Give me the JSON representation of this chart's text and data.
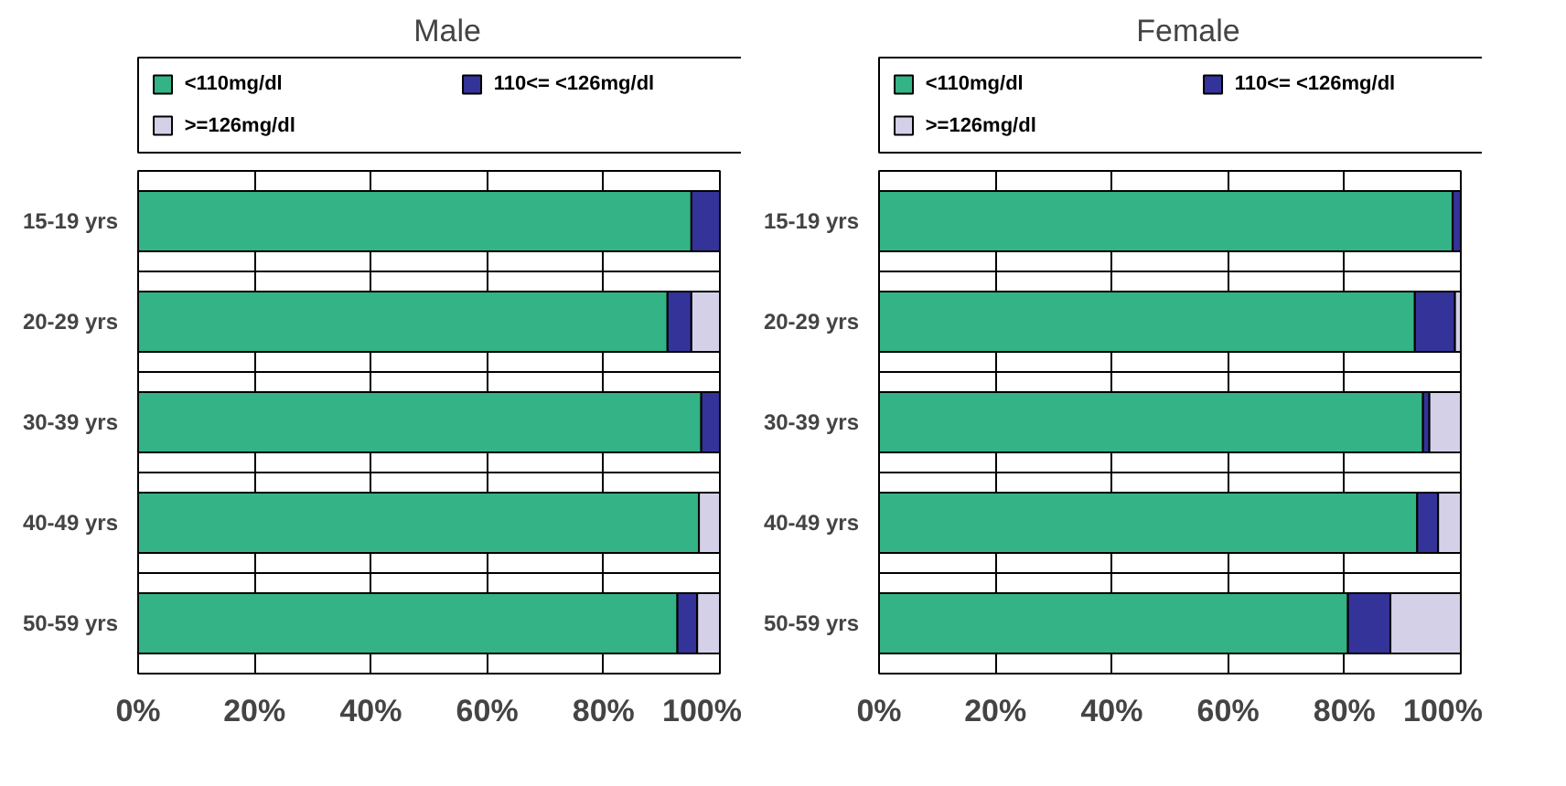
{
  "chart_data": [
    {
      "type": "bar",
      "title": "Male",
      "orientation": "horizontal",
      "stacked": true,
      "categories": [
        "15-19 yrs",
        "20-29 yrs",
        "30-39 yrs",
        "40-49 yrs",
        "50-59 yrs"
      ],
      "series": [
        {
          "name": "<110mg/dl",
          "color": "#33b386",
          "values": [
            95.1,
            91.0,
            96.8,
            96.4,
            92.7
          ]
        },
        {
          "name": "110<= <126mg/dl",
          "color": "#333399",
          "values": [
            4.9,
            4.1,
            3.2,
            0,
            3.4
          ]
        },
        {
          "name": ">=126mg/dl",
          "color": "#d4d0e8",
          "values": [
            0,
            4.9,
            0,
            3.6,
            3.9
          ]
        }
      ],
      "xlim": [
        0,
        100
      ],
      "xticks": [
        {
          "value": 0,
          "label": "0%"
        },
        {
          "value": 20,
          "label": "20%"
        },
        {
          "value": 40,
          "label": "40%"
        },
        {
          "value": 60,
          "label": "60%"
        },
        {
          "value": 80,
          "label": "80%"
        },
        {
          "value": 100,
          "label": "100%"
        }
      ],
      "grid": true,
      "legend": "top"
    },
    {
      "type": "bar",
      "title": "Female",
      "orientation": "horizontal",
      "stacked": true,
      "categories": [
        "15-19 yrs",
        "20-29 yrs",
        "30-39 yrs",
        "40-49 yrs",
        "50-59 yrs"
      ],
      "series": [
        {
          "name": "<110mg/dl",
          "color": "#33b386",
          "values": [
            98.6,
            92.1,
            93.5,
            92.5,
            80.6
          ]
        },
        {
          "name": "110<= <126mg/dl",
          "color": "#333399",
          "values": [
            1.4,
            6.9,
            1.1,
            3.6,
            7.3
          ]
        },
        {
          "name": ">=126mg/dl",
          "color": "#d4d0e8",
          "values": [
            0,
            1.0,
            5.4,
            3.9,
            12.1
          ]
        }
      ],
      "xlim": [
        0,
        100
      ],
      "xticks": [
        {
          "value": 0,
          "label": "0%"
        },
        {
          "value": 20,
          "label": "20%"
        },
        {
          "value": 40,
          "label": "40%"
        },
        {
          "value": 60,
          "label": "60%"
        },
        {
          "value": 80,
          "label": "80%"
        },
        {
          "value": 100,
          "label": "100%"
        }
      ],
      "grid": true,
      "legend": "top"
    }
  ]
}
